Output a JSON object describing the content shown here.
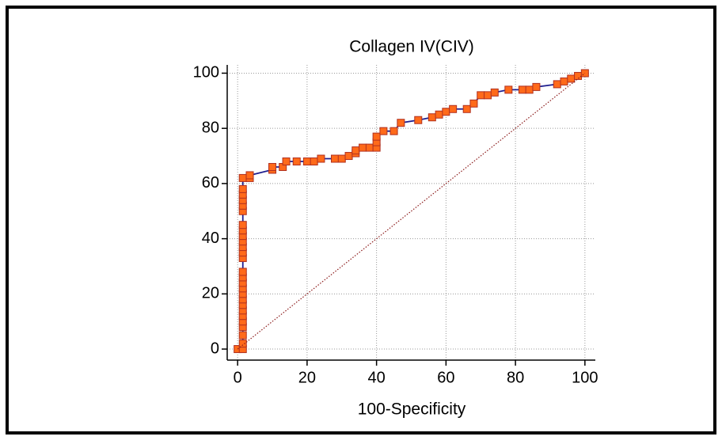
{
  "chart_data": {
    "type": "line",
    "title": "Collagen IV(CIV)",
    "xlabel": "100-Specificity",
    "xlim": [
      -3,
      103
    ],
    "ylim": [
      -4,
      103
    ],
    "xticks": [
      0,
      20,
      40,
      60,
      80,
      100
    ],
    "yticks": [
      0,
      20,
      40,
      60,
      80,
      100
    ],
    "grid": true,
    "series": [
      {
        "color": "#1f1f8f",
        "marker_color": "#ff6a1a",
        "marker_edge": "#b03020",
        "line_style": "solid",
        "x": [
          0,
          1.5,
          1.5,
          1.5,
          1.5,
          1.5,
          1.5,
          1.5,
          1.5,
          1.5,
          1.5,
          1.5,
          1.5,
          1.5,
          1.5,
          1.5,
          1.5,
          1.5,
          1.5,
          1.5,
          1.5,
          1.5,
          1.5,
          1.5,
          1.5,
          1.5,
          1.5,
          1.5,
          3.5,
          3.5,
          10,
          10,
          13,
          14,
          17,
          20,
          22,
          24,
          28,
          30,
          32,
          34,
          34,
          36,
          38,
          40,
          40,
          40,
          42,
          45,
          47,
          52,
          56,
          58,
          60,
          62,
          66,
          68,
          70,
          72,
          74,
          78,
          82,
          84,
          86,
          92,
          94,
          96,
          98,
          100
        ],
        "values": [
          0,
          0,
          2,
          5,
          8,
          10,
          12,
          14,
          16,
          18,
          20,
          22,
          24,
          26,
          28,
          33,
          35,
          37,
          39,
          41,
          43,
          45,
          50,
          52,
          54,
          56,
          58,
          62,
          62,
          63,
          65,
          66,
          66,
          68,
          68,
          68,
          68,
          69,
          69,
          69,
          70,
          71,
          72,
          73,
          73,
          73,
          75,
          77,
          79,
          79,
          82,
          83,
          84,
          85,
          86,
          87,
          87,
          89,
          92,
          92,
          93,
          94,
          94,
          94,
          95,
          96,
          97,
          98,
          99,
          100
        ]
      },
      {
        "color": "#8b1a1a",
        "line_style": "dotted",
        "x": [
          0,
          100
        ],
        "values": [
          0,
          100
        ]
      }
    ]
  }
}
